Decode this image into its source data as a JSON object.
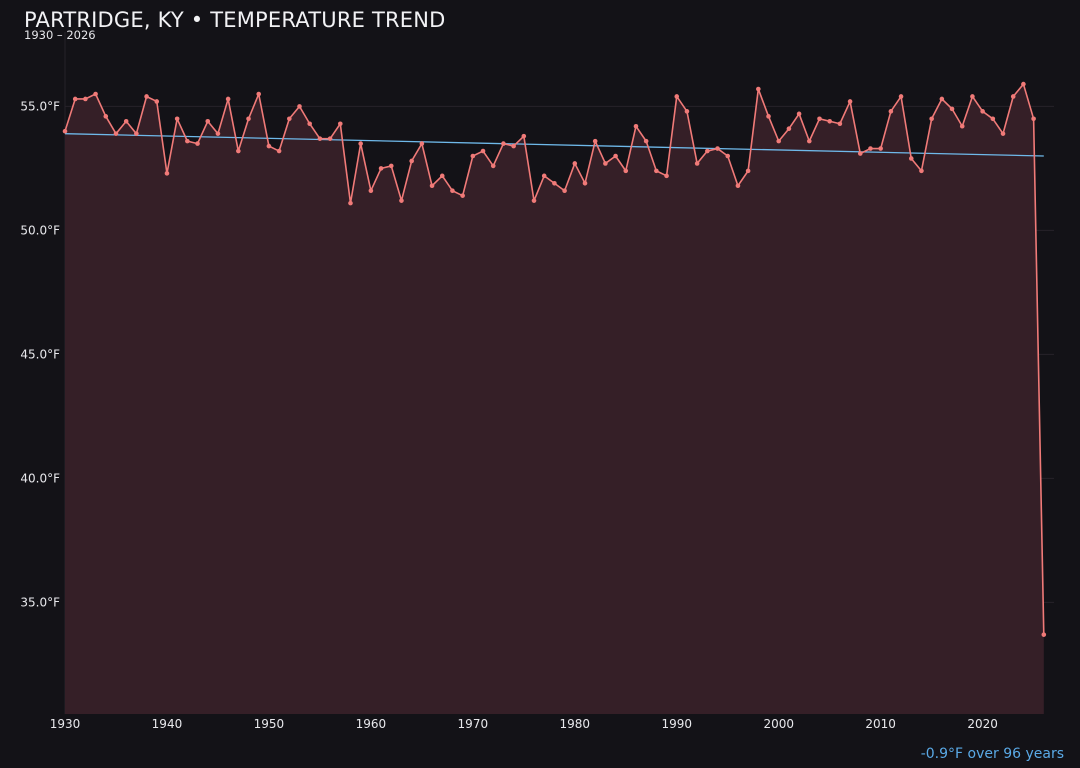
{
  "header": {
    "title": "PARTRIDGE, KY • TEMPERATURE TREND",
    "subtitle": "1930 – 2026"
  },
  "footer": {
    "change_note": "-0.9°F over 96 years"
  },
  "colors": {
    "background": "#131217",
    "series_line": "#f07a78",
    "area_fill": "#351f27",
    "trend_line": "#6fb9ea",
    "grid": "#27222a",
    "tick_text": "#e8e8ec",
    "note_text": "#5aa9e6"
  },
  "chart_data": {
    "type": "line",
    "title": "PARTRIDGE, KY • TEMPERATURE TREND",
    "subtitle": "1930 – 2026",
    "xlabel": "",
    "ylabel": "",
    "xlim": [
      1930,
      2027
    ],
    "ylim": [
      30.5,
      58.0
    ],
    "grid": true,
    "legend": "none",
    "area_fill": true,
    "y_unit_suffix": "°F",
    "x_ticks": [
      1930,
      1940,
      1950,
      1960,
      1970,
      1980,
      1990,
      2000,
      2010,
      2020
    ],
    "y_ticks": [
      35.0,
      40.0,
      45.0,
      50.0,
      55.0
    ],
    "y_tick_labels": [
      "35.0°F",
      "40.0°F",
      "45.0°F",
      "50.0°F",
      "55.0°F"
    ],
    "x": [
      1930,
      1931,
      1932,
      1933,
      1934,
      1935,
      1936,
      1937,
      1938,
      1939,
      1940,
      1941,
      1942,
      1943,
      1944,
      1945,
      1946,
      1947,
      1948,
      1949,
      1950,
      1951,
      1952,
      1953,
      1954,
      1955,
      1956,
      1957,
      1958,
      1959,
      1960,
      1961,
      1962,
      1963,
      1964,
      1965,
      1966,
      1967,
      1968,
      1969,
      1970,
      1971,
      1972,
      1973,
      1974,
      1975,
      1976,
      1977,
      1978,
      1979,
      1980,
      1981,
      1982,
      1983,
      1984,
      1985,
      1986,
      1987,
      1988,
      1989,
      1990,
      1991,
      1992,
      1993,
      1994,
      1995,
      1996,
      1997,
      1998,
      1999,
      2000,
      2001,
      2002,
      2003,
      2004,
      2005,
      2006,
      2007,
      2008,
      2009,
      2010,
      2011,
      2012,
      2013,
      2014,
      2015,
      2016,
      2017,
      2018,
      2019,
      2020,
      2021,
      2022,
      2023,
      2024,
      2025,
      2026
    ],
    "values": [
      54.0,
      55.3,
      55.3,
      55.5,
      54.6,
      53.9,
      54.4,
      53.9,
      55.4,
      55.2,
      52.3,
      54.5,
      53.6,
      53.5,
      54.4,
      53.9,
      55.3,
      53.2,
      54.5,
      55.5,
      53.4,
      53.2,
      54.5,
      55.0,
      54.3,
      53.7,
      53.7,
      54.3,
      51.1,
      53.5,
      51.6,
      52.5,
      52.6,
      51.2,
      52.8,
      53.5,
      51.8,
      52.2,
      51.6,
      51.4,
      53.0,
      53.2,
      52.6,
      53.5,
      53.4,
      53.8,
      51.2,
      52.2,
      51.9,
      51.6,
      52.7,
      51.9,
      53.6,
      52.7,
      53.0,
      52.4,
      54.2,
      53.6,
      52.4,
      52.2,
      55.4,
      54.8,
      52.7,
      53.2,
      53.3,
      53.0,
      51.8,
      52.4,
      55.7,
      54.6,
      53.6,
      54.1,
      54.7,
      53.6,
      54.5,
      54.4,
      54.3,
      55.2,
      53.1,
      53.3,
      53.3,
      54.8,
      55.4,
      52.9,
      52.4,
      54.5,
      55.3,
      54.9,
      54.2,
      55.4,
      54.8,
      54.5,
      53.9,
      55.4,
      55.9,
      54.5,
      33.7
    ],
    "trend": {
      "x": [
        1930,
        2026
      ],
      "values": [
        53.9,
        53.0
      ]
    }
  }
}
